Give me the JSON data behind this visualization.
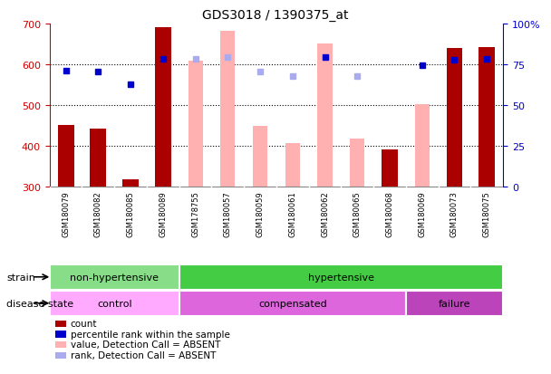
{
  "title": "GDS3018 / 1390375_at",
  "samples": [
    "GSM180079",
    "GSM180082",
    "GSM180085",
    "GSM180089",
    "GSM178755",
    "GSM180057",
    "GSM180059",
    "GSM180061",
    "GSM180062",
    "GSM180065",
    "GSM180068",
    "GSM180069",
    "GSM180073",
    "GSM180075"
  ],
  "count_values": [
    452,
    442,
    318,
    692,
    null,
    null,
    null,
    null,
    null,
    null,
    390,
    null,
    640,
    642
  ],
  "absent_value_values": [
    null,
    null,
    null,
    null,
    608,
    683,
    449,
    407,
    651,
    418,
    null,
    502,
    null,
    null
  ],
  "percentile_values": [
    585,
    582,
    551,
    614,
    null,
    null,
    null,
    null,
    618,
    null,
    null,
    597,
    612,
    613
  ],
  "absent_rank_values": [
    null,
    null,
    null,
    null,
    614,
    618,
    581,
    570,
    null,
    572,
    null,
    null,
    null,
    null
  ],
  "ylim_left": [
    300,
    700
  ],
  "ylim_right": [
    0,
    100
  ],
  "yticks_left": [
    300,
    400,
    500,
    600,
    700
  ],
  "yticks_right": [
    0,
    25,
    50,
    75,
    100
  ],
  "count_color": "#AA0000",
  "absent_value_color": "#FFB0B0",
  "percentile_color": "#0000CC",
  "absent_rank_color": "#AAAAEE",
  "bar_width": 0.5,
  "absent_bar_width": 0.45,
  "strain_groups": [
    {
      "label": "non-hypertensive",
      "start": 0,
      "end": 4,
      "color": "#88DD88"
    },
    {
      "label": "hypertensive",
      "start": 4,
      "end": 14,
      "color": "#44CC44"
    }
  ],
  "disease_groups": [
    {
      "label": "control",
      "start": 0,
      "end": 4,
      "color": "#FFAAFF"
    },
    {
      "label": "compensated",
      "start": 4,
      "end": 11,
      "color": "#DD66DD"
    },
    {
      "label": "failure",
      "start": 11,
      "end": 14,
      "color": "#BB44BB"
    }
  ],
  "strain_label": "strain",
  "disease_label": "disease state",
  "legend_items": [
    {
      "label": "count",
      "color": "#AA0000"
    },
    {
      "label": "percentile rank within the sample",
      "color": "#0000CC"
    },
    {
      "label": "value, Detection Call = ABSENT",
      "color": "#FFB0B0"
    },
    {
      "label": "rank, Detection Call = ABSENT",
      "color": "#AAAAEE"
    }
  ],
  "bg_color": "#FFFFFF",
  "plot_bg_color": "#FFFFFF",
  "tick_label_color_left": "#CC0000",
  "tick_label_color_right": "#0000CC",
  "grid_color": "#000000",
  "xticklabel_bg": "#C8C8C8",
  "grid_lines": [
    400,
    500,
    600
  ]
}
